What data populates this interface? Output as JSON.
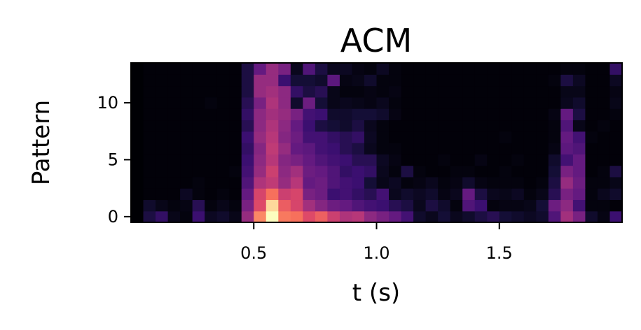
{
  "chart_data": {
    "type": "heatmap",
    "title": "ACM",
    "xlabel": "t (s)",
    "ylabel": "Pattern",
    "colormap": "magma",
    "xlim": [
      0.0,
      2.0
    ],
    "ylim": [
      -0.5,
      13.5
    ],
    "xticks": [
      0.5,
      1.0,
      1.5
    ],
    "yticks": [
      0,
      5,
      10
    ],
    "xticklabels": [
      "0.5",
      "1.0",
      "1.5"
    ],
    "yticklabels": [
      "0",
      "5",
      "10"
    ],
    "grid": false,
    "n_time_bins": 40,
    "n_patterns": 14,
    "bin_width": 0.05,
    "value_range": [
      0,
      1
    ],
    "z": [
      [
        0,
        0.12,
        0.18,
        0.04,
        0.02,
        0.2,
        0.06,
        0.08,
        0.04,
        0.42,
        0.75,
        1.0,
        0.72,
        0.7,
        0.6,
        0.66,
        0.55,
        0.48,
        0.5,
        0.4,
        0.35,
        0.3,
        0.22,
        0.08,
        0.05,
        0.1,
        0.05,
        0.08,
        0.12,
        0.15,
        0.1,
        0.08,
        0.06,
        0.08,
        0.25,
        0.45,
        0.35,
        0.08,
        0.03,
        0.2
      ],
      [
        0,
        0.08,
        0.04,
        0.02,
        0.03,
        0.15,
        0.02,
        0.04,
        0.02,
        0.35,
        0.6,
        0.92,
        0.65,
        0.58,
        0.45,
        0.38,
        0.32,
        0.3,
        0.25,
        0.22,
        0.2,
        0.15,
        0.12,
        0.05,
        0.12,
        0.08,
        0.02,
        0.25,
        0.2,
        0.02,
        0.03,
        0.03,
        0.04,
        0.1,
        0.32,
        0.4,
        0.22,
        0.02,
        0.02,
        0.01
      ],
      [
        0,
        0.01,
        0.01,
        0.01,
        0.06,
        0.02,
        0.01,
        0.02,
        0.01,
        0.3,
        0.58,
        0.7,
        0.55,
        0.58,
        0.35,
        0.32,
        0.2,
        0.22,
        0.18,
        0.15,
        0.22,
        0.05,
        0.08,
        0.06,
        0.08,
        0.03,
        0.05,
        0.3,
        0.12,
        0.05,
        0.04,
        0.06,
        0.02,
        0.04,
        0.15,
        0.35,
        0.3,
        0.02,
        0.05,
        0.08
      ],
      [
        0,
        0.01,
        0.01,
        0.01,
        0.01,
        0.02,
        0.01,
        0.01,
        0.01,
        0.25,
        0.48,
        0.52,
        0.42,
        0.5,
        0.3,
        0.32,
        0.25,
        0.22,
        0.2,
        0.1,
        0.04,
        0.06,
        0.02,
        0.03,
        0.05,
        0.02,
        0.03,
        0.08,
        0.03,
        0.02,
        0.02,
        0.02,
        0.01,
        0.02,
        0.12,
        0.42,
        0.32,
        0.02,
        0.02,
        0.04
      ],
      [
        0,
        0.01,
        0.01,
        0.01,
        0.01,
        0.01,
        0.01,
        0.01,
        0.02,
        0.22,
        0.42,
        0.55,
        0.4,
        0.45,
        0.32,
        0.3,
        0.25,
        0.18,
        0.2,
        0.18,
        0.05,
        0.02,
        0.12,
        0.02,
        0.01,
        0.01,
        0.02,
        0.02,
        0.01,
        0.01,
        0.02,
        0.01,
        0.01,
        0.01,
        0.1,
        0.35,
        0.3,
        0.01,
        0.02,
        0.12
      ],
      [
        0,
        0.01,
        0.01,
        0.01,
        0.01,
        0.01,
        0.01,
        0.01,
        0.01,
        0.2,
        0.4,
        0.5,
        0.38,
        0.35,
        0.3,
        0.25,
        0.22,
        0.2,
        0.15,
        0.15,
        0.06,
        0.03,
        0.01,
        0.01,
        0.01,
        0.02,
        0.01,
        0.01,
        0.03,
        0.01,
        0.01,
        0.02,
        0.01,
        0.01,
        0.08,
        0.22,
        0.3,
        0.01,
        0.01,
        0.01
      ],
      [
        0,
        0.01,
        0.01,
        0.01,
        0.01,
        0.01,
        0.01,
        0.01,
        0.01,
        0.18,
        0.38,
        0.52,
        0.42,
        0.3,
        0.28,
        0.22,
        0.2,
        0.15,
        0.12,
        0.05,
        0.02,
        0.02,
        0.01,
        0.01,
        0.01,
        0.01,
        0.01,
        0.01,
        0.01,
        0.01,
        0.01,
        0.01,
        0.01,
        0.01,
        0.03,
        0.28,
        0.25,
        0.01,
        0.01,
        0.01
      ],
      [
        0,
        0.01,
        0.01,
        0.01,
        0.01,
        0.01,
        0.01,
        0.01,
        0.01,
        0.2,
        0.42,
        0.5,
        0.38,
        0.32,
        0.22,
        0.22,
        0.18,
        0.15,
        0.18,
        0.06,
        0.02,
        0.01,
        0.01,
        0.01,
        0.01,
        0.01,
        0.01,
        0.01,
        0.01,
        0.01,
        0.02,
        0.01,
        0.01,
        0.01,
        0.02,
        0.3,
        0.22,
        0.02,
        0.01,
        0.01
      ],
      [
        0,
        0.01,
        0.01,
        0.01,
        0.01,
        0.01,
        0.01,
        0.01,
        0.01,
        0.15,
        0.4,
        0.48,
        0.4,
        0.3,
        0.2,
        0.12,
        0.1,
        0.08,
        0.12,
        0.05,
        0.02,
        0.01,
        0.01,
        0.01,
        0.01,
        0.01,
        0.01,
        0.01,
        0.01,
        0.01,
        0.01,
        0.01,
        0.01,
        0.01,
        0.02,
        0.25,
        0.04,
        0.01,
        0.02,
        0.01
      ],
      [
        0,
        0.01,
        0.01,
        0.01,
        0.01,
        0.01,
        0.01,
        0.01,
        0.01,
        0.18,
        0.4,
        0.45,
        0.42,
        0.35,
        0.22,
        0.2,
        0.08,
        0.08,
        0.1,
        0.1,
        0.08,
        0.03,
        0.01,
        0.01,
        0.01,
        0.01,
        0.01,
        0.01,
        0.01,
        0.01,
        0.01,
        0.01,
        0.01,
        0.01,
        0.03,
        0.3,
        0.12,
        0.01,
        0.01,
        0.02
      ],
      [
        0,
        0.01,
        0.01,
        0.01,
        0.01,
        0.01,
        0.02,
        0.01,
        0.01,
        0.15,
        0.35,
        0.48,
        0.4,
        0.08,
        0.32,
        0.1,
        0.04,
        0.05,
        0.04,
        0.03,
        0.05,
        0.02,
        0.01,
        0.01,
        0.01,
        0.01,
        0.01,
        0.01,
        0.01,
        0.01,
        0.01,
        0.01,
        0.01,
        0.01,
        0.01,
        0.05,
        0.08,
        0.01,
        0.01,
        0.04
      ],
      [
        0,
        0.01,
        0.01,
        0.01,
        0.01,
        0.01,
        0.01,
        0.01,
        0.01,
        0.12,
        0.42,
        0.45,
        0.4,
        0.18,
        0.12,
        0.15,
        0.04,
        0.02,
        0.02,
        0.03,
        0.02,
        0.03,
        0.01,
        0.01,
        0.01,
        0.01,
        0.01,
        0.01,
        0.01,
        0.01,
        0.01,
        0.01,
        0.01,
        0.01,
        0.01,
        0.04,
        0.04,
        0.01,
        0.01,
        0.03
      ],
      [
        0,
        0.01,
        0.01,
        0.01,
        0.01,
        0.01,
        0.01,
        0.01,
        0.01,
        0.12,
        0.42,
        0.42,
        0.2,
        0.1,
        0.1,
        0.08,
        0.28,
        0.03,
        0.04,
        0.08,
        0.02,
        0.02,
        0.01,
        0.01,
        0.01,
        0.01,
        0.01,
        0.01,
        0.01,
        0.01,
        0.01,
        0.01,
        0.01,
        0.01,
        0.02,
        0.12,
        0.06,
        0.01,
        0.01,
        0.06
      ],
      [
        0,
        0.01,
        0.01,
        0.01,
        0.01,
        0.01,
        0.01,
        0.01,
        0.01,
        0.12,
        0.3,
        0.42,
        0.35,
        0.05,
        0.25,
        0.12,
        0.05,
        0.06,
        0.03,
        0.02,
        0.06,
        0.02,
        0.01,
        0.01,
        0.01,
        0.01,
        0.01,
        0.01,
        0.01,
        0.01,
        0.01,
        0.01,
        0.01,
        0.01,
        0.01,
        0.02,
        0.02,
        0.01,
        0.01,
        0.18
      ]
    ]
  }
}
